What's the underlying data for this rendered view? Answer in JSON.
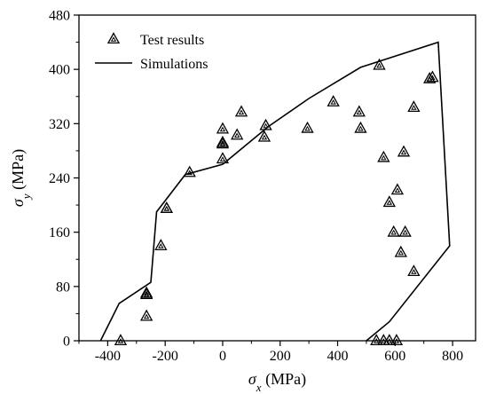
{
  "chart_data": {
    "type": "scatter",
    "xlabel": {
      "symbol": "σ",
      "sub": "x",
      "unit": " (MPa)"
    },
    "ylabel": {
      "symbol": "σ",
      "sub": "y",
      "unit": " (MPa)"
    },
    "xlim": [
      -500,
      880
    ],
    "ylim": [
      0,
      480
    ],
    "xticks": [
      -400,
      -200,
      0,
      200,
      400,
      600,
      800
    ],
    "yticks": [
      0,
      80,
      160,
      240,
      320,
      400,
      480
    ],
    "xtick_labels": [
      "-400",
      "-200",
      "0",
      "200",
      "400",
      "600",
      "800"
    ],
    "ytick_labels": [
      "0",
      "80",
      "160",
      "240",
      "320",
      "400",
      "480"
    ],
    "legend": {
      "placement": "top-left"
    },
    "series": [
      {
        "name": "Test results",
        "kind": "scatter",
        "marker": "triangle-open",
        "points": [
          [
            -355,
            0
          ],
          [
            -265,
            68
          ],
          [
            -265,
            70
          ],
          [
            -265,
            36
          ],
          [
            -195,
            195
          ],
          [
            -195,
            195
          ],
          [
            -215,
            140
          ],
          [
            -115,
            248
          ],
          [
            0,
            312
          ],
          [
            0,
            292
          ],
          [
            0,
            290
          ],
          [
            0,
            268
          ],
          [
            50,
            303
          ],
          [
            65,
            337
          ],
          [
            145,
            300
          ],
          [
            150,
            317
          ],
          [
            295,
            313
          ],
          [
            385,
            352
          ],
          [
            475,
            337
          ],
          [
            480,
            313
          ],
          [
            545,
            406
          ],
          [
            560,
            270
          ],
          [
            580,
            204
          ],
          [
            595,
            160
          ],
          [
            608,
            222
          ],
          [
            620,
            130
          ],
          [
            630,
            278
          ],
          [
            635,
            160
          ],
          [
            665,
            344
          ],
          [
            665,
            102
          ],
          [
            720,
            386
          ],
          [
            730,
            388
          ],
          [
            535,
            0
          ],
          [
            560,
            0
          ],
          [
            580,
            0
          ],
          [
            605,
            0
          ]
        ]
      },
      {
        "name": "Simulations",
        "kind": "line",
        "points": [
          [
            -425,
            0
          ],
          [
            -360,
            55
          ],
          [
            -250,
            86
          ],
          [
            -230,
            190
          ],
          [
            -130,
            245
          ],
          [
            0,
            260
          ],
          [
            160,
            316
          ],
          [
            300,
            357
          ],
          [
            480,
            403
          ],
          [
            750,
            440
          ],
          [
            790,
            140
          ],
          [
            580,
            28
          ],
          [
            500,
            0
          ]
        ]
      }
    ]
  }
}
